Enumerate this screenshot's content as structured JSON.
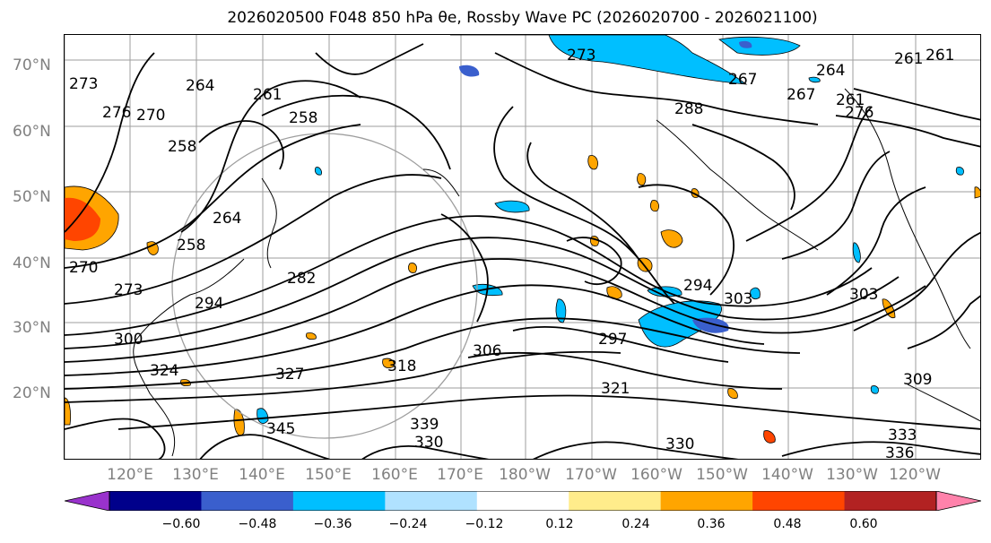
{
  "title": "2026020500 F048 850 hPa θe, Rossby Wave PC (2026020700 - 2026021100)",
  "latitude_labels": [
    "70°N",
    "60°N",
    "50°N",
    "40°N",
    "30°N",
    "20°N"
  ],
  "longitude_labels": [
    "120°E",
    "130°E",
    "140°E",
    "150°E",
    "160°E",
    "170°E",
    "180°W",
    "170°W",
    "160°W",
    "150°W",
    "140°W",
    "130°W",
    "120°W"
  ],
  "contour_labels": [
    "273",
    "276",
    "270",
    "264",
    "261",
    "258",
    "258",
    "264",
    "267",
    "261",
    "273",
    "267",
    "264",
    "261",
    "258",
    "276",
    "288",
    "294",
    "297",
    "303",
    "309",
    "303",
    "306",
    "318",
    "321",
    "324",
    "327",
    "330",
    "333",
    "336",
    "339",
    "330",
    "300",
    "282",
    "294",
    "273",
    "270",
    "261",
    "345"
  ],
  "colorbar": {
    "tick_labels": [
      "−0.60",
      "−0.48",
      "−0.36",
      "−0.24",
      "−0.12",
      "0.12",
      "0.24",
      "0.36",
      "0.48",
      "0.60"
    ],
    "colors": [
      "#9932cc",
      "#00008b",
      "#3a5fcd",
      "#00bfff",
      "#b0e2ff",
      "#ffffff",
      "#ffec8b",
      "#ffa500",
      "#ff4500",
      "#b22222",
      "#ff82ab"
    ]
  }
}
